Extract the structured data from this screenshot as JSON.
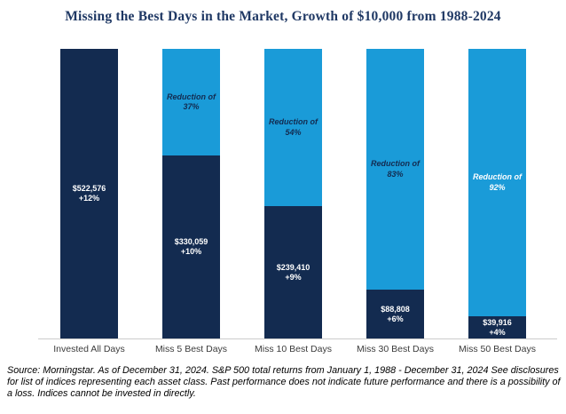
{
  "title": "Missing the Best Days in the Market, Growth of $10,000 from 1988-2024",
  "colors": {
    "navy": "#132b50",
    "light_blue": "#1a9bd8",
    "title_navy": "#1f3864",
    "axis_line": "#cccccc"
  },
  "chart_data": {
    "type": "bar",
    "stacked": true,
    "title": "Missing the Best Days in the Market, Growth of $10,000 from 1988-2024",
    "xlabel": "",
    "ylabel": "",
    "max_value": 522576,
    "grid": false,
    "legend": "none",
    "categories": [
      "Invested All Days",
      "Miss 5 Best Days",
      "Miss 10 Best Days",
      "Miss 30 Best Days",
      "Miss 50 Best Days"
    ],
    "series": [
      {
        "name": "Ending value (navy segment)",
        "values": [
          522576,
          330059,
          239410,
          88808,
          39916
        ]
      },
      {
        "name": "Reduction vs fully invested (light blue segment, %)",
        "values": [
          0,
          37,
          54,
          83,
          92
        ]
      }
    ],
    "bars": [
      {
        "category": "Invested All Days",
        "value": 522576,
        "value_label": "$522,576",
        "return_label": "+12%",
        "reduction_label": "",
        "reduction_label_color": ""
      },
      {
        "category": "Miss 5 Best Days",
        "value": 330059,
        "value_label": "$330,059",
        "return_label": "+10%",
        "reduction_label": "Reduction of 37%",
        "reduction_label_color": "#132b50"
      },
      {
        "category": "Miss 10 Best Days",
        "value": 239410,
        "value_label": "$239,410",
        "return_label": "+9%",
        "reduction_label": "Reduction of 54%",
        "reduction_label_color": "#132b50"
      },
      {
        "category": "Miss 30 Best Days",
        "value": 88808,
        "value_label": "$88,808",
        "return_label": "+6%",
        "reduction_label": "Reduction of 83%",
        "reduction_label_color": "#132b50"
      },
      {
        "category": "Miss 50 Best Days",
        "value": 39916,
        "value_label": "$39,916",
        "return_label": "+4%",
        "reduction_label": "Reduction of 92%",
        "reduction_label_color": "#ffffff"
      }
    ]
  },
  "source": {
    "line1": "Source: Morningstar. As of December 31, 2024. S&P 500 total returns from January 1, 1988 - December 31, 2024",
    "line2": "See disclosures for list of indices representing each asset class. Past performance does not indicate future performance and there is a possibility of a loss. Indices cannot be invested in directly."
  }
}
